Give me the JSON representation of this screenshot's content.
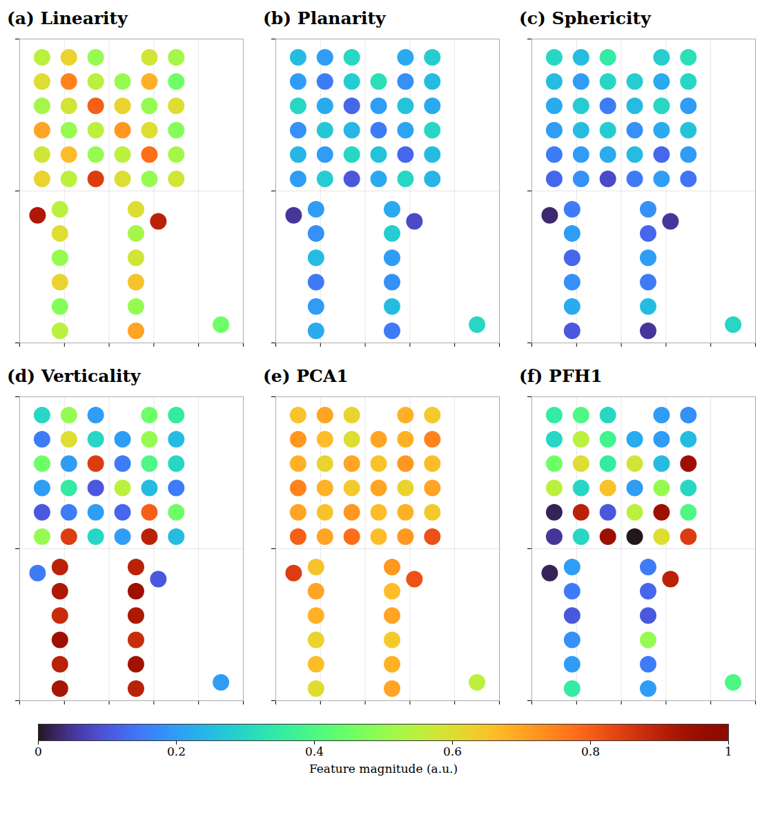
{
  "chart_data": {
    "type": "scatter",
    "tick_labels": false,
    "grid": true,
    "xlim": [
      0,
      5
    ],
    "ylim": [
      0,
      10
    ],
    "xticks": [
      0,
      1,
      2,
      3,
      4,
      5
    ],
    "yticks": [
      0,
      5,
      10
    ],
    "x": [
      0.5,
      1.1,
      1.7,
      2.9,
      3.5,
      0.5,
      1.1,
      1.7,
      2.3,
      2.9,
      3.5,
      0.5,
      1.1,
      1.7,
      2.3,
      2.9,
      3.5,
      0.5,
      1.1,
      1.7,
      2.3,
      2.9,
      3.5,
      0.5,
      1.1,
      1.7,
      2.3,
      2.9,
      3.5,
      0.5,
      1.1,
      1.7,
      2.3,
      2.9,
      3.5,
      0.4,
      3.1,
      0.9,
      0.9,
      0.9,
      0.9,
      0.9,
      0.9,
      2.6,
      2.6,
      2.6,
      2.6,
      2.6,
      2.6,
      4.5
    ],
    "y": [
      9.4,
      9.4,
      9.4,
      9.4,
      9.4,
      8.6,
      8.6,
      8.6,
      8.6,
      8.6,
      8.6,
      7.8,
      7.8,
      7.8,
      7.8,
      7.8,
      7.8,
      7.0,
      7.0,
      7.0,
      7.0,
      7.0,
      7.0,
      6.2,
      6.2,
      6.2,
      6.2,
      6.2,
      6.2,
      5.4,
      5.4,
      5.4,
      5.4,
      5.4,
      5.4,
      4.2,
      4.0,
      4.4,
      3.6,
      2.8,
      2.0,
      1.2,
      0.4,
      4.4,
      3.6,
      2.8,
      2.0,
      1.2,
      0.4,
      0.6
    ],
    "panels": [
      {
        "title": "(a) Linearity",
        "values": [
          0.55,
          0.62,
          0.5,
          0.58,
          0.52,
          0.6,
          0.75,
          0.55,
          0.5,
          0.68,
          0.45,
          0.52,
          0.58,
          0.8,
          0.62,
          0.5,
          0.6,
          0.7,
          0.5,
          0.55,
          0.72,
          0.6,
          0.48,
          0.58,
          0.66,
          0.5,
          0.55,
          0.78,
          0.52,
          0.62,
          0.55,
          0.85,
          0.6,
          0.5,
          0.58,
          0.92,
          0.9,
          0.55,
          0.6,
          0.5,
          0.62,
          0.48,
          0.55,
          0.6,
          0.52,
          0.58,
          0.65,
          0.5,
          0.7,
          0.45
        ]
      },
      {
        "title": "(b) Planarity",
        "values": [
          0.25,
          0.2,
          0.3,
          0.22,
          0.28,
          0.2,
          0.15,
          0.28,
          0.32,
          0.18,
          0.25,
          0.3,
          0.22,
          0.12,
          0.2,
          0.26,
          0.22,
          0.18,
          0.27,
          0.24,
          0.15,
          0.21,
          0.3,
          0.24,
          0.2,
          0.3,
          0.26,
          0.12,
          0.25,
          0.2,
          0.28,
          0.1,
          0.22,
          0.3,
          0.24,
          0.05,
          0.08,
          0.2,
          0.18,
          0.25,
          0.15,
          0.2,
          0.22,
          0.22,
          0.28,
          0.2,
          0.18,
          0.25,
          0.15,
          0.3
        ]
      },
      {
        "title": "(c) Sphericity",
        "values": [
          0.3,
          0.25,
          0.35,
          0.28,
          0.32,
          0.25,
          0.2,
          0.3,
          0.28,
          0.22,
          0.3,
          0.22,
          0.28,
          0.15,
          0.25,
          0.3,
          0.2,
          0.2,
          0.25,
          0.28,
          0.18,
          0.22,
          0.26,
          0.15,
          0.2,
          0.22,
          0.25,
          0.12,
          0.2,
          0.12,
          0.18,
          0.08,
          0.15,
          0.2,
          0.14,
          0.03,
          0.05,
          0.15,
          0.2,
          0.12,
          0.18,
          0.22,
          0.1,
          0.18,
          0.12,
          0.2,
          0.15,
          0.25,
          0.05,
          0.3
        ]
      },
      {
        "title": "(d) Verticality",
        "values": [
          0.3,
          0.5,
          0.2,
          0.45,
          0.35,
          0.15,
          0.6,
          0.3,
          0.2,
          0.5,
          0.25,
          0.45,
          0.2,
          0.85,
          0.15,
          0.4,
          0.3,
          0.2,
          0.35,
          0.1,
          0.55,
          0.25,
          0.15,
          0.1,
          0.15,
          0.2,
          0.12,
          0.8,
          0.45,
          0.5,
          0.85,
          0.3,
          0.2,
          0.9,
          0.25,
          0.15,
          0.1,
          0.9,
          0.92,
          0.88,
          0.95,
          0.9,
          0.93,
          0.9,
          0.95,
          0.92,
          0.88,
          0.94,
          0.9,
          0.2
        ]
      },
      {
        "title": "(e) PCA1",
        "values": [
          0.65,
          0.7,
          0.62,
          0.68,
          0.64,
          0.72,
          0.66,
          0.6,
          0.7,
          0.68,
          0.75,
          0.68,
          0.62,
          0.7,
          0.65,
          0.72,
          0.66,
          0.75,
          0.68,
          0.64,
          0.7,
          0.62,
          0.7,
          0.7,
          0.65,
          0.72,
          0.66,
          0.68,
          0.64,
          0.8,
          0.7,
          0.78,
          0.66,
          0.72,
          0.82,
          0.85,
          0.82,
          0.65,
          0.7,
          0.68,
          0.62,
          0.66,
          0.6,
          0.72,
          0.66,
          0.7,
          0.64,
          0.68,
          0.7,
          0.55
        ]
      },
      {
        "title": "(f) PFH1",
        "values": [
          0.35,
          0.4,
          0.3,
          0.2,
          0.18,
          0.3,
          0.55,
          0.38,
          0.22,
          0.2,
          0.25,
          0.45,
          0.6,
          0.35,
          0.58,
          0.25,
          0.95,
          0.55,
          0.3,
          0.65,
          0.2,
          0.5,
          0.3,
          0.02,
          0.9,
          0.1,
          0.55,
          0.95,
          0.4,
          0.05,
          0.3,
          0.95,
          0.0,
          0.6,
          0.85,
          0.02,
          0.9,
          0.2,
          0.15,
          0.1,
          0.18,
          0.2,
          0.35,
          0.15,
          0.12,
          0.1,
          0.5,
          0.15,
          0.2,
          0.4
        ]
      }
    ],
    "colorbar": {
      "label": "Feature magnitude (a.u.)",
      "range": [
        0,
        1
      ],
      "ticks": [
        0,
        0.2,
        0.4,
        0.6,
        0.8,
        1
      ]
    }
  }
}
